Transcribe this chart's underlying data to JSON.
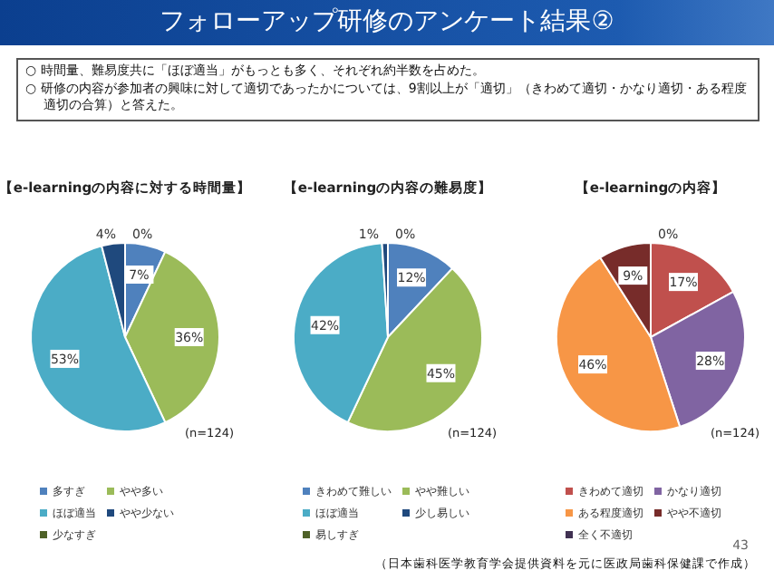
{
  "chart_data": [
    {
      "type": "other",
      "title": "フォローアップ研修のアンケート結果②",
      "annotations": [
        "○ 時間量、難易度共に「ほぼ適当」がもっとも多く、それぞれ約半数を占めた。",
        "○ 研修の内容が参加者の興味に対して適切であったかについては、9割以上が「適切」（きわめて適切・かなり適切・ある程度適切の合算）と答えた。",
        "43",
        "（日本歯科医学教育学会提供資料を元に医政局歯科保健課で作成）"
      ]
    },
    {
      "type": "pie",
      "title": "【e-learningの内容に対する時間量】",
      "categories": [
        "多すぎ",
        "やや多い",
        "ほぼ適当",
        "やや少ない",
        "少なすぎ"
      ],
      "values": [
        7,
        36,
        53,
        4,
        0
      ],
      "value_labels": [
        "7%",
        "36%",
        "53%",
        "4%",
        "0%"
      ],
      "colors": [
        "#4f81bd",
        "#9bbb59",
        "#4bacc6",
        "#1f497d",
        "#4f6228"
      ],
      "legend": "bottom",
      "annotations": [
        "(n=124)"
      ]
    },
    {
      "type": "pie",
      "title": "【e-learningの内容の難易度】",
      "categories": [
        "きわめて難しい",
        "やや難しい",
        "ほぼ適当",
        "少し易しい",
        "易しすぎ"
      ],
      "values": [
        12,
        45,
        42,
        1,
        0
      ],
      "value_labels": [
        "12%",
        "45%",
        "42%",
        "1%",
        "0%"
      ],
      "colors": [
        "#4f81bd",
        "#9bbb59",
        "#4bacc6",
        "#1f497d",
        "#4f6228"
      ],
      "legend": "bottom",
      "annotations": [
        "(n=124)"
      ]
    },
    {
      "type": "pie",
      "title": "【e-learningの内容】",
      "categories": [
        "きわめて適切",
        "かなり適切",
        "ある程度適切",
        "やや不適切",
        "全く不適切"
      ],
      "values": [
        17,
        28,
        46,
        9,
        0
      ],
      "value_labels": [
        "17%",
        "28%",
        "46%",
        "9%",
        "0%"
      ],
      "colors": [
        "#c0504d",
        "#8064a2",
        "#f79646",
        "#772c2a",
        "#403152"
      ],
      "legend": "bottom",
      "annotations": [
        "(n=124)"
      ]
    }
  ]
}
